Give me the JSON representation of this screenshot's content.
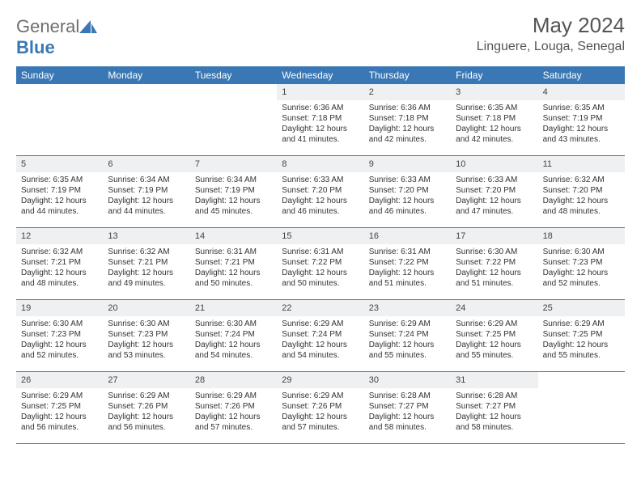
{
  "logo": {
    "word1": "General",
    "word2": "Blue"
  },
  "title": "May 2024",
  "location": "Linguere, Louga, Senegal",
  "colors": {
    "header_bg": "#3a78b5",
    "header_text": "#ffffff",
    "daynum_bg": "#eef0f1",
    "border": "#3a78b5",
    "logo_gray": "#6e6e6e",
    "logo_blue": "#3a78b5"
  },
  "day_names": [
    "Sunday",
    "Monday",
    "Tuesday",
    "Wednesday",
    "Thursday",
    "Friday",
    "Saturday"
  ],
  "weeks": [
    [
      {
        "empty": true
      },
      {
        "empty": true
      },
      {
        "empty": true
      },
      {
        "num": "1",
        "sunrise": "Sunrise: 6:36 AM",
        "sunset": "Sunset: 7:18 PM",
        "daylight": "Daylight: 12 hours and 41 minutes."
      },
      {
        "num": "2",
        "sunrise": "Sunrise: 6:36 AM",
        "sunset": "Sunset: 7:18 PM",
        "daylight": "Daylight: 12 hours and 42 minutes."
      },
      {
        "num": "3",
        "sunrise": "Sunrise: 6:35 AM",
        "sunset": "Sunset: 7:18 PM",
        "daylight": "Daylight: 12 hours and 42 minutes."
      },
      {
        "num": "4",
        "sunrise": "Sunrise: 6:35 AM",
        "sunset": "Sunset: 7:19 PM",
        "daylight": "Daylight: 12 hours and 43 minutes."
      }
    ],
    [
      {
        "num": "5",
        "sunrise": "Sunrise: 6:35 AM",
        "sunset": "Sunset: 7:19 PM",
        "daylight": "Daylight: 12 hours and 44 minutes."
      },
      {
        "num": "6",
        "sunrise": "Sunrise: 6:34 AM",
        "sunset": "Sunset: 7:19 PM",
        "daylight": "Daylight: 12 hours and 44 minutes."
      },
      {
        "num": "7",
        "sunrise": "Sunrise: 6:34 AM",
        "sunset": "Sunset: 7:19 PM",
        "daylight": "Daylight: 12 hours and 45 minutes."
      },
      {
        "num": "8",
        "sunrise": "Sunrise: 6:33 AM",
        "sunset": "Sunset: 7:20 PM",
        "daylight": "Daylight: 12 hours and 46 minutes."
      },
      {
        "num": "9",
        "sunrise": "Sunrise: 6:33 AM",
        "sunset": "Sunset: 7:20 PM",
        "daylight": "Daylight: 12 hours and 46 minutes."
      },
      {
        "num": "10",
        "sunrise": "Sunrise: 6:33 AM",
        "sunset": "Sunset: 7:20 PM",
        "daylight": "Daylight: 12 hours and 47 minutes."
      },
      {
        "num": "11",
        "sunrise": "Sunrise: 6:32 AM",
        "sunset": "Sunset: 7:20 PM",
        "daylight": "Daylight: 12 hours and 48 minutes."
      }
    ],
    [
      {
        "num": "12",
        "sunrise": "Sunrise: 6:32 AM",
        "sunset": "Sunset: 7:21 PM",
        "daylight": "Daylight: 12 hours and 48 minutes."
      },
      {
        "num": "13",
        "sunrise": "Sunrise: 6:32 AM",
        "sunset": "Sunset: 7:21 PM",
        "daylight": "Daylight: 12 hours and 49 minutes."
      },
      {
        "num": "14",
        "sunrise": "Sunrise: 6:31 AM",
        "sunset": "Sunset: 7:21 PM",
        "daylight": "Daylight: 12 hours and 50 minutes."
      },
      {
        "num": "15",
        "sunrise": "Sunrise: 6:31 AM",
        "sunset": "Sunset: 7:22 PM",
        "daylight": "Daylight: 12 hours and 50 minutes."
      },
      {
        "num": "16",
        "sunrise": "Sunrise: 6:31 AM",
        "sunset": "Sunset: 7:22 PM",
        "daylight": "Daylight: 12 hours and 51 minutes."
      },
      {
        "num": "17",
        "sunrise": "Sunrise: 6:30 AM",
        "sunset": "Sunset: 7:22 PM",
        "daylight": "Daylight: 12 hours and 51 minutes."
      },
      {
        "num": "18",
        "sunrise": "Sunrise: 6:30 AM",
        "sunset": "Sunset: 7:23 PM",
        "daylight": "Daylight: 12 hours and 52 minutes."
      }
    ],
    [
      {
        "num": "19",
        "sunrise": "Sunrise: 6:30 AM",
        "sunset": "Sunset: 7:23 PM",
        "daylight": "Daylight: 12 hours and 52 minutes."
      },
      {
        "num": "20",
        "sunrise": "Sunrise: 6:30 AM",
        "sunset": "Sunset: 7:23 PM",
        "daylight": "Daylight: 12 hours and 53 minutes."
      },
      {
        "num": "21",
        "sunrise": "Sunrise: 6:30 AM",
        "sunset": "Sunset: 7:24 PM",
        "daylight": "Daylight: 12 hours and 54 minutes."
      },
      {
        "num": "22",
        "sunrise": "Sunrise: 6:29 AM",
        "sunset": "Sunset: 7:24 PM",
        "daylight": "Daylight: 12 hours and 54 minutes."
      },
      {
        "num": "23",
        "sunrise": "Sunrise: 6:29 AM",
        "sunset": "Sunset: 7:24 PM",
        "daylight": "Daylight: 12 hours and 55 minutes."
      },
      {
        "num": "24",
        "sunrise": "Sunrise: 6:29 AM",
        "sunset": "Sunset: 7:25 PM",
        "daylight": "Daylight: 12 hours and 55 minutes."
      },
      {
        "num": "25",
        "sunrise": "Sunrise: 6:29 AM",
        "sunset": "Sunset: 7:25 PM",
        "daylight": "Daylight: 12 hours and 55 minutes."
      }
    ],
    [
      {
        "num": "26",
        "sunrise": "Sunrise: 6:29 AM",
        "sunset": "Sunset: 7:25 PM",
        "daylight": "Daylight: 12 hours and 56 minutes."
      },
      {
        "num": "27",
        "sunrise": "Sunrise: 6:29 AM",
        "sunset": "Sunset: 7:26 PM",
        "daylight": "Daylight: 12 hours and 56 minutes."
      },
      {
        "num": "28",
        "sunrise": "Sunrise: 6:29 AM",
        "sunset": "Sunset: 7:26 PM",
        "daylight": "Daylight: 12 hours and 57 minutes."
      },
      {
        "num": "29",
        "sunrise": "Sunrise: 6:29 AM",
        "sunset": "Sunset: 7:26 PM",
        "daylight": "Daylight: 12 hours and 57 minutes."
      },
      {
        "num": "30",
        "sunrise": "Sunrise: 6:28 AM",
        "sunset": "Sunset: 7:27 PM",
        "daylight": "Daylight: 12 hours and 58 minutes."
      },
      {
        "num": "31",
        "sunrise": "Sunrise: 6:28 AM",
        "sunset": "Sunset: 7:27 PM",
        "daylight": "Daylight: 12 hours and 58 minutes."
      },
      {
        "empty": true
      }
    ]
  ]
}
